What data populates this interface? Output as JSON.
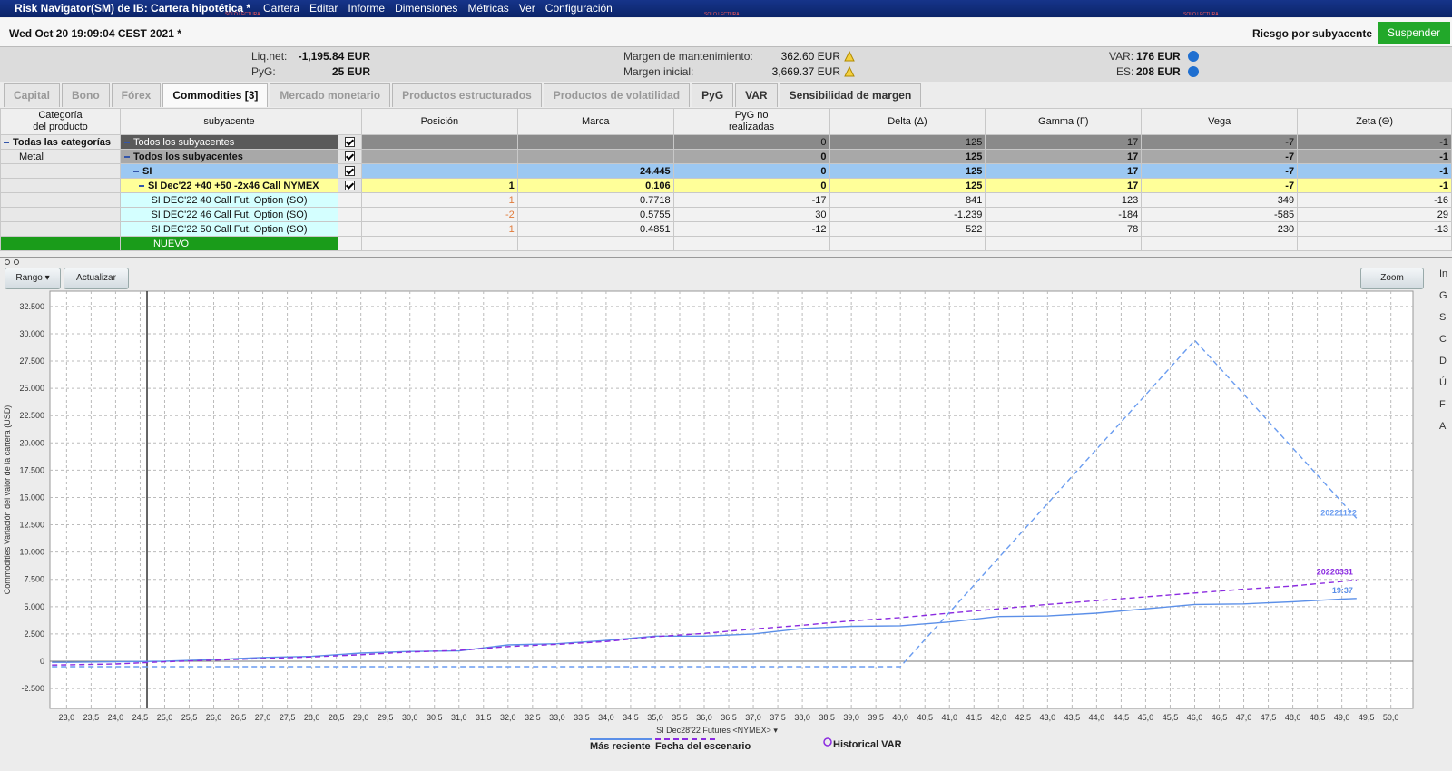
{
  "title_bar": {
    "title": "Risk Navigator(SM) de IB: Cartera hipotética *",
    "menu": [
      "Cartera",
      "Editar",
      "Informe",
      "Dimensiones",
      "Métricas",
      "Ver",
      "Configuración"
    ],
    "readonly": "SOLO LECTURA"
  },
  "header": {
    "timestamp": "Wed Oct 20 19:09:04 CEST 2021 *",
    "risk_label": "Riesgo por subyacente",
    "suspend_button": "Suspender"
  },
  "summary": [
    {
      "label": "Liq.net:",
      "value": "-1,195.84 EUR"
    },
    {
      "label": "PyG:",
      "value": "25 EUR"
    },
    {
      "label": "Margen de mantenimiento:",
      "value": "362.60 EUR"
    },
    {
      "label": "Margen inicial:",
      "value": "3,669.37 EUR"
    },
    {
      "label": "VAR:",
      "value": "176 EUR"
    },
    {
      "label": "ES:",
      "value": "208 EUR"
    }
  ],
  "tabs": [
    {
      "label": "Capital"
    },
    {
      "label": "Bono"
    },
    {
      "label": "Fórex"
    },
    {
      "label": "Commodities [3]",
      "active": true
    },
    {
      "label": "Mercado monetario"
    },
    {
      "label": "Productos estructurados"
    },
    {
      "label": "Productos de volatilidad"
    },
    {
      "label": "PyG",
      "enabled": true
    },
    {
      "label": "VAR",
      "enabled": true
    },
    {
      "label": "Sensibilidad de margen",
      "enabled": true
    }
  ],
  "table": {
    "columns": [
      "Categoría\ndel producto",
      "subyacente",
      null,
      "Posición",
      "Marca",
      "PyG no\nrealizadas",
      "Delta (Δ)",
      "Gamma (Γ)",
      "Vega",
      "Zeta (Θ)"
    ],
    "rows": [
      {
        "level": "total",
        "category": "Todas las categorías",
        "name": "Todos los subyacentes",
        "checked": true,
        "values": [
          null,
          null,
          "0",
          "125",
          "17",
          "-7",
          "-1"
        ]
      },
      {
        "level": "sub",
        "category": "Metal",
        "name": "Todos los subyacentes",
        "checked": true,
        "values": [
          null,
          null,
          "0",
          "125",
          "17",
          "-7",
          "-1"
        ]
      },
      {
        "level": "underlying",
        "category": null,
        "name": "SI",
        "checked": true,
        "values": [
          null,
          "24.445",
          "0",
          "125",
          "17",
          "-7",
          "-1"
        ]
      },
      {
        "level": "strategy",
        "category": null,
        "name": "SI Dec'22  +40  +50  -2x46 Call NYMEX",
        "checked": true,
        "values": [
          "1",
          "0.106",
          "0",
          "125",
          "17",
          "-7",
          "-1"
        ]
      },
      {
        "level": "leg",
        "category": null,
        "name": "SI DEC'22 40 Call Fut. Option (SO)",
        "values": [
          "1",
          "0.7718",
          "-17",
          "841",
          "123",
          "349",
          "-16"
        ]
      },
      {
        "level": "leg",
        "category": null,
        "name": "SI DEC'22 46 Call Fut. Option (SO)",
        "values": [
          "-2",
          "0.5755",
          "30",
          "-1.239",
          "-184",
          "-585",
          "29"
        ]
      },
      {
        "level": "leg",
        "category": null,
        "name": "SI DEC'22 50 Call Fut. Option (SO)",
        "values": [
          "1",
          "0.4851",
          "-12",
          "522",
          "78",
          "230",
          "-13"
        ]
      },
      {
        "level": "new",
        "category": null,
        "name": "NUEVO",
        "values": [
          null,
          null,
          null,
          null,
          null,
          null,
          null
        ]
      }
    ]
  },
  "toolbar": {
    "range_button": "Rango ▾",
    "refresh_button": "Actualizar",
    "zoom_button": "Zoom"
  },
  "side_letters": [
    "In",
    "G",
    "S",
    "C",
    "D",
    "Ú",
    "F",
    "A"
  ],
  "chart_data": {
    "type": "line",
    "x_label": "SI Dec28'22 Futures <NYMEX> ▾",
    "y_label": "Commodities Variación del valor de la cartera (USD)",
    "xlim": [
      22.66,
      50.45
    ],
    "ylim": [
      -4320,
      33900
    ],
    "grid": true,
    "marker_x": 24.64,
    "xticks": [
      {
        "value": 23,
        "label": "23,0"
      },
      {
        "value": 23.5,
        "label": "23,5"
      },
      {
        "value": 24,
        "label": "24,0"
      },
      {
        "value": 24.5,
        "label": "24,5"
      },
      {
        "value": 25,
        "label": "25,0"
      },
      {
        "value": 25.5,
        "label": "25,5"
      },
      {
        "value": 26,
        "label": "26,0"
      },
      {
        "value": 26.5,
        "label": "26,5"
      },
      {
        "value": 27,
        "label": "27,0"
      },
      {
        "value": 27.5,
        "label": "27,5"
      },
      {
        "value": 28,
        "label": "28,0"
      },
      {
        "value": 28.5,
        "label": "28,5"
      },
      {
        "value": 29,
        "label": "29,0"
      },
      {
        "value": 29.5,
        "label": "29,5"
      },
      {
        "value": 30,
        "label": "30,0"
      },
      {
        "value": 30.5,
        "label": "30,5"
      },
      {
        "value": 31,
        "label": "31,0"
      },
      {
        "value": 31.5,
        "label": "31,5"
      },
      {
        "value": 32,
        "label": "32,0"
      },
      {
        "value": 32.5,
        "label": "32,5"
      },
      {
        "value": 33,
        "label": "33,0"
      },
      {
        "value": 33.5,
        "label": "33,5"
      },
      {
        "value": 34,
        "label": "34,0"
      },
      {
        "value": 34.5,
        "label": "34,5"
      },
      {
        "value": 35,
        "label": "35,0"
      },
      {
        "value": 35.5,
        "label": "35,5"
      },
      {
        "value": 36,
        "label": "36,0"
      },
      {
        "value": 36.5,
        "label": "36,5"
      },
      {
        "value": 37,
        "label": "37,0"
      },
      {
        "value": 37.5,
        "label": "37,5"
      },
      {
        "value": 38,
        "label": "38,0"
      },
      {
        "value": 38.5,
        "label": "38,5"
      },
      {
        "value": 39,
        "label": "39,0"
      },
      {
        "value": 39.5,
        "label": "39,5"
      },
      {
        "value": 40,
        "label": "40,0"
      },
      {
        "value": 40.5,
        "label": "40,5"
      },
      {
        "value": 41,
        "label": "41,0"
      },
      {
        "value": 41.5,
        "label": "41,5"
      },
      {
        "value": 42,
        "label": "42,0"
      },
      {
        "value": 42.5,
        "label": "42,5"
      },
      {
        "value": 43,
        "label": "43,0"
      },
      {
        "value": 43.5,
        "label": "43,5"
      },
      {
        "value": 44,
        "label": "44,0"
      },
      {
        "value": 44.5,
        "label": "44,5"
      },
      {
        "value": 45,
        "label": "45,0"
      },
      {
        "value": 45.5,
        "label": "45,5"
      },
      {
        "value": 46,
        "label": "46,0"
      },
      {
        "value": 46.5,
        "label": "46,5"
      },
      {
        "value": 47,
        "label": "47,0"
      },
      {
        "value": 47.5,
        "label": "47,5"
      },
      {
        "value": 48,
        "label": "48,0"
      },
      {
        "value": 48.5,
        "label": "48,5"
      },
      {
        "value": 49,
        "label": "49,0"
      },
      {
        "value": 49.5,
        "label": "49,5"
      },
      {
        "value": 50,
        "label": "50,0"
      }
    ],
    "yticks": [
      {
        "value": -2500,
        "label": "-2.500"
      },
      0,
      {
        "value": 2500,
        "label": "2.500"
      },
      {
        "value": 5000,
        "label": "5.000"
      },
      {
        "value": 7500,
        "label": "7.500"
      },
      {
        "value": 10000,
        "label": "10.000"
      },
      {
        "value": 12500,
        "label": "12.500"
      },
      {
        "value": 15000,
        "label": "15.000"
      },
      {
        "value": 17500,
        "label": "17.500"
      },
      {
        "value": 20000,
        "label": "20.000"
      },
      {
        "value": 22500,
        "label": "22.500"
      },
      {
        "value": 25000,
        "label": "25.000"
      },
      {
        "value": 27500,
        "label": "27.500"
      },
      {
        "value": 30000,
        "label": "30.000"
      },
      {
        "value": 32500,
        "label": "32.500"
      }
    ],
    "series": [
      {
        "name": "Más reciente",
        "label": "19:37",
        "color": "#5b8fe8",
        "dashed": false,
        "x": [
          22.7,
          23,
          24,
          25,
          26,
          27,
          28,
          29,
          30,
          31,
          32,
          33,
          34,
          35,
          36,
          37,
          38,
          39,
          40,
          41,
          42,
          43,
          44,
          45,
          46,
          47,
          48,
          49,
          49.3
        ],
        "values": [
          -100,
          -100,
          -50,
          0,
          150,
          350,
          450,
          750,
          900,
          950,
          1500,
          1600,
          1900,
          2300,
          2300,
          2500,
          3000,
          3200,
          3250,
          3600,
          4100,
          4150,
          4400,
          4800,
          5200,
          5250,
          5450,
          5700,
          5750
        ]
      },
      {
        "name": "Fecha del escenario",
        "label": "20220331",
        "color": "#8b2be0",
        "dashed": true,
        "x": [
          22.7,
          23,
          24,
          25,
          26,
          27,
          28,
          29,
          30,
          31,
          32,
          33,
          34,
          35,
          36,
          37,
          38,
          39,
          40,
          41,
          42,
          43,
          44,
          45,
          46,
          47,
          48,
          49,
          49.3
        ],
        "values": [
          -350,
          -330,
          -250,
          -50,
          100,
          250,
          400,
          600,
          850,
          1000,
          1350,
          1550,
          1800,
          2250,
          2550,
          2950,
          3300,
          3700,
          4000,
          4400,
          4800,
          5200,
          5550,
          5900,
          6250,
          6600,
          6900,
          7300,
          7450
        ]
      },
      {
        "label": "20221122",
        "color": "#6a9cf0",
        "dashed": true,
        "x": [
          22.7,
          40,
          46,
          49.3
        ],
        "values": [
          -500,
          -500,
          29400,
          13100
        ]
      }
    ],
    "var_legend": "Historical VAR"
  }
}
